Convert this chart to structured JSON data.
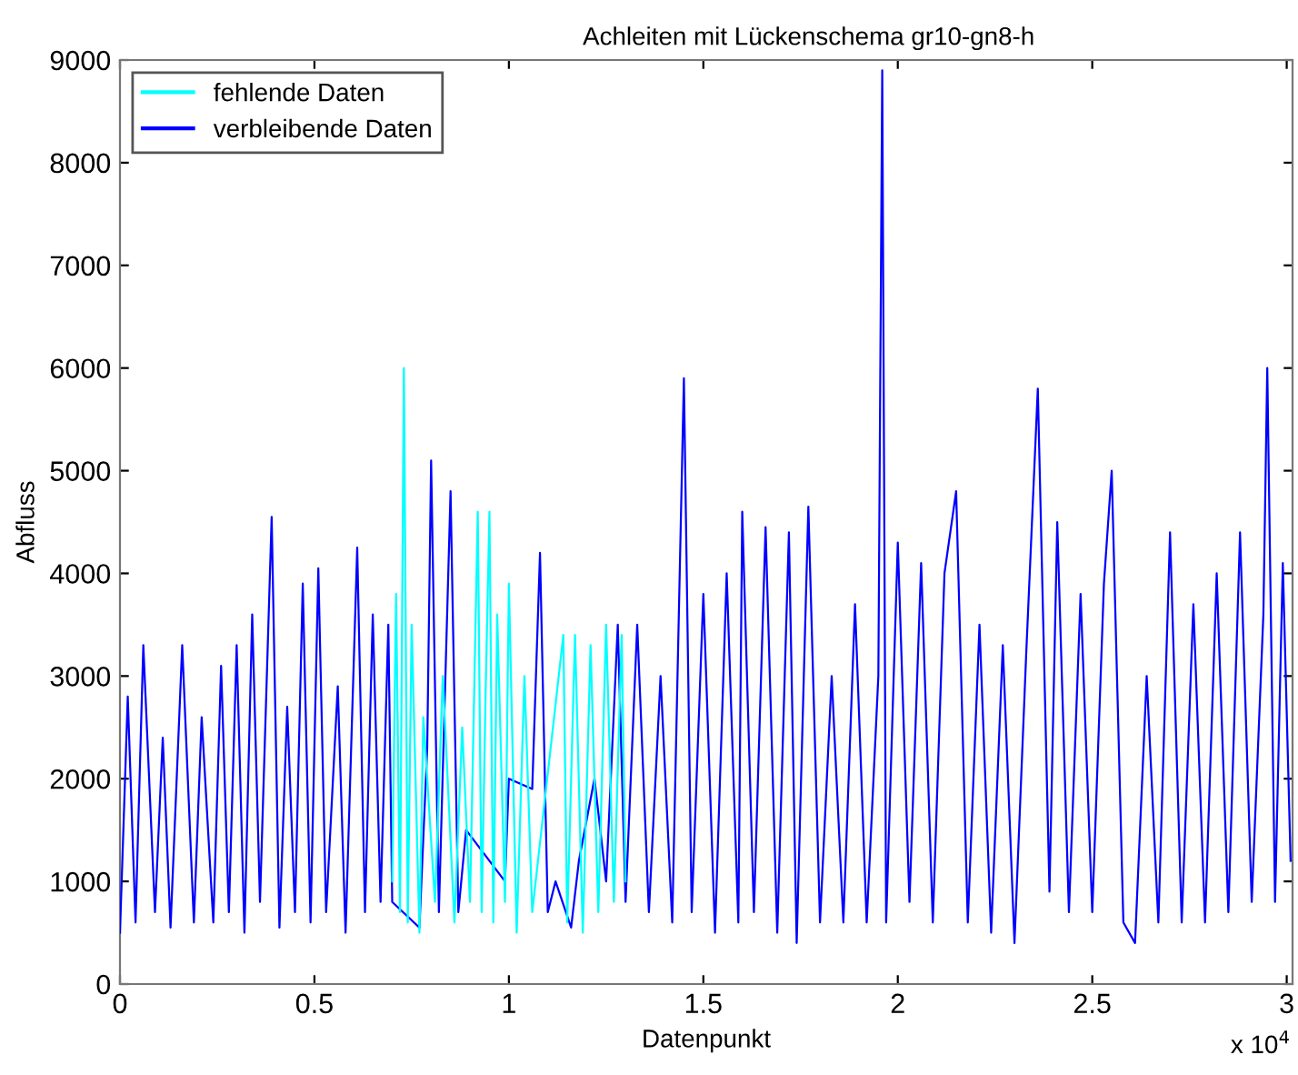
{
  "chart_data": {
    "type": "line",
    "title": "Achleiten mit Lückenschema gr10-gn8-h",
    "xlabel": "Datenpunkt",
    "ylabel": "Abfluss",
    "annotations": [
      "x 10$^{4}$"
    ],
    "xlim": [
      0,
      3.015
    ],
    "ylim": [
      0,
      9000
    ],
    "xticks": [
      0,
      0.5,
      1,
      1.5,
      2,
      2.5,
      3
    ],
    "yticks": [
      0,
      1000,
      2000,
      3000,
      4000,
      5000,
      6000,
      7000,
      8000,
      9000
    ],
    "grid": false,
    "legend": "top left",
    "line_style": "solid",
    "marker": "none",
    "series": [
      {
        "name": "fehlende Daten",
        "color": "#00ffff",
        "x": [
          0.7,
          0.71,
          0.72,
          0.73,
          0.74,
          0.75,
          0.77,
          0.78,
          0.81,
          0.83,
          0.86,
          0.88,
          0.9,
          0.92,
          0.93,
          0.94,
          0.95,
          0.96,
          0.97,
          0.99,
          1.0,
          1.02,
          1.04,
          1.06,
          1.14,
          1.15,
          1.17,
          1.19,
          1.21,
          1.23,
          1.25,
          1.27,
          1.29,
          1.3
        ],
        "values": [
          1000,
          3800,
          700,
          6000,
          600,
          3500,
          500,
          2600,
          800,
          3000,
          600,
          2500,
          800,
          4600,
          700,
          2800,
          4600,
          600,
          3600,
          800,
          3900,
          500,
          3000,
          700,
          3400,
          600,
          3400,
          500,
          3300,
          700,
          3500,
          800,
          3400,
          1000
        ]
      },
      {
        "name": "verbleibende Daten",
        "color": "#0000ff",
        "x": [
          0,
          0.02,
          0.04,
          0.06,
          0.09,
          0.11,
          0.13,
          0.16,
          0.19,
          0.21,
          0.24,
          0.26,
          0.28,
          0.3,
          0.32,
          0.34,
          0.36,
          0.39,
          0.41,
          0.43,
          0.45,
          0.47,
          0.49,
          0.51,
          0.53,
          0.56,
          0.58,
          0.61,
          0.63,
          0.65,
          0.67,
          0.69,
          0.7,
          0.77,
          0.79,
          0.8,
          0.82,
          0.85,
          0.87,
          0.89,
          0.99,
          1.0,
          1.06,
          1.08,
          1.1,
          1.12,
          1.16,
          1.18,
          1.22,
          1.25,
          1.28,
          1.3,
          1.33,
          1.36,
          1.39,
          1.42,
          1.45,
          1.47,
          1.5,
          1.53,
          1.56,
          1.59,
          1.6,
          1.63,
          1.66,
          1.69,
          1.72,
          1.74,
          1.77,
          1.8,
          1.83,
          1.86,
          1.89,
          1.92,
          1.95,
          1.96,
          1.97,
          2.0,
          2.03,
          2.06,
          2.09,
          2.12,
          2.15,
          2.18,
          2.21,
          2.24,
          2.27,
          2.3,
          2.33,
          2.36,
          2.39,
          2.41,
          2.44,
          2.47,
          2.5,
          2.53,
          2.55,
          2.58,
          2.61,
          2.64,
          2.67,
          2.7,
          2.73,
          2.76,
          2.79,
          2.82,
          2.85,
          2.88,
          2.91,
          2.94,
          2.95,
          2.97,
          2.99,
          3.01
        ],
        "values": [
          500,
          2800,
          600,
          3300,
          700,
          2400,
          550,
          3300,
          600,
          2600,
          600,
          3100,
          700,
          3300,
          500,
          3600,
          800,
          4550,
          550,
          2700,
          700,
          3900,
          600,
          4050,
          700,
          2900,
          500,
          4250,
          700,
          3600,
          800,
          3500,
          800,
          550,
          2300,
          5100,
          700,
          4800,
          700,
          1500,
          1000,
          2000,
          1900,
          4200,
          700,
          1000,
          550,
          1200,
          2000,
          1000,
          3500,
          800,
          3500,
          700,
          3000,
          600,
          5900,
          700,
          3800,
          500,
          4000,
          600,
          4600,
          700,
          4450,
          500,
          4400,
          400,
          4650,
          600,
          3000,
          600,
          3700,
          600,
          3000,
          8900,
          600,
          4300,
          800,
          4100,
          600,
          4000,
          4800,
          600,
          3500,
          500,
          3300,
          400,
          3200,
          5800,
          900,
          4500,
          700,
          3800,
          700,
          3900,
          5000,
          600,
          400,
          3000,
          600,
          4400,
          600,
          3700,
          600,
          4000,
          700,
          4400,
          800,
          3600,
          6000,
          800,
          4100,
          1200
        ]
      }
    ]
  }
}
